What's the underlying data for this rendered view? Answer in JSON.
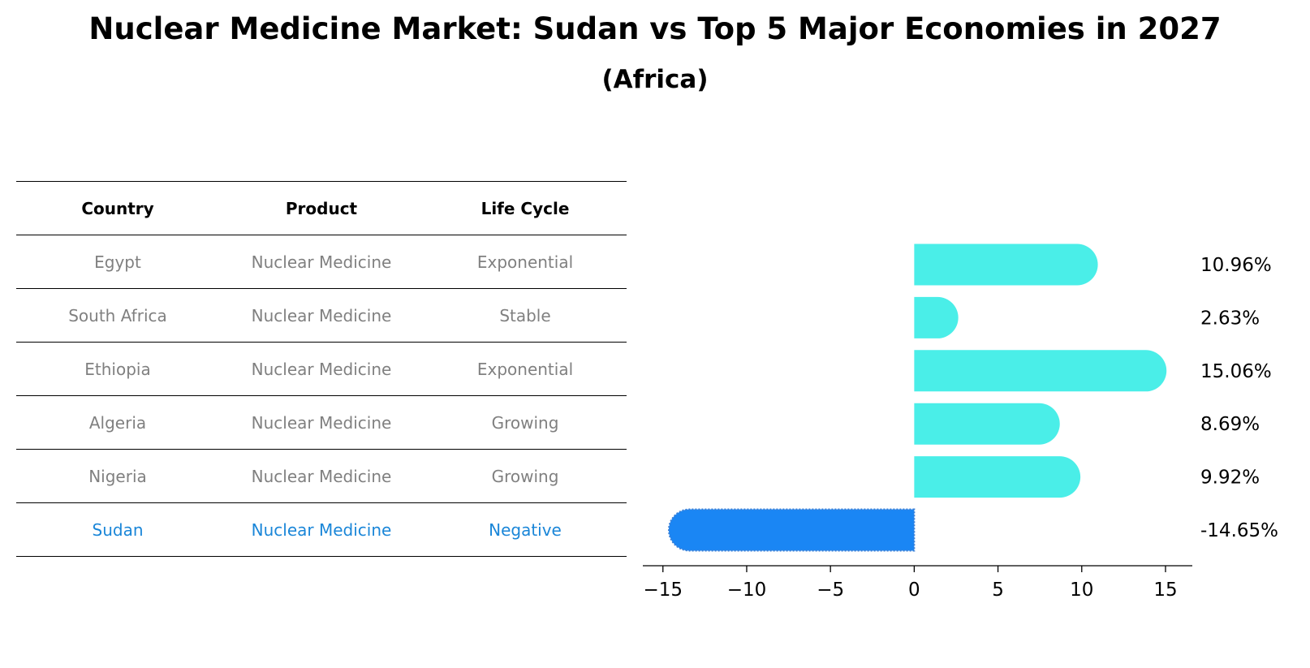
{
  "title": "Nuclear Medicine Market: Sudan vs Top 5 Major Economies in 2027",
  "subtitle": "(Africa)",
  "table": {
    "headers": [
      "Country",
      "Product",
      "Life Cycle"
    ],
    "rows": [
      {
        "country": "Egypt",
        "product": "Nuclear Medicine",
        "life_cycle": "Exponential"
      },
      {
        "country": "South Africa",
        "product": "Nuclear Medicine",
        "life_cycle": "Stable"
      },
      {
        "country": "Ethiopia",
        "product": "Nuclear Medicine",
        "life_cycle": "Exponential"
      },
      {
        "country": "Algeria",
        "product": "Nuclear Medicine",
        "life_cycle": "Growing"
      },
      {
        "country": "Nigeria",
        "product": "Nuclear Medicine",
        "life_cycle": "Growing"
      },
      {
        "country": "Sudan",
        "product": "Nuclear Medicine",
        "life_cycle": "Negative"
      }
    ]
  },
  "chart_data": {
    "type": "bar",
    "orientation": "horizontal",
    "categories": [
      "Egypt",
      "South Africa",
      "Ethiopia",
      "Algeria",
      "Nigeria",
      "Sudan"
    ],
    "values": [
      10.96,
      2.63,
      15.06,
      8.69,
      9.92,
      -14.65
    ],
    "labels": [
      "10.96%",
      "2.63%",
      "15.06%",
      "8.69%",
      "9.92%",
      "-14.65%"
    ],
    "xlim": [
      -16.2,
      16.6
    ],
    "xticks": [
      -15,
      -10,
      -5,
      0,
      5,
      10,
      15
    ],
    "xtick_labels": [
      "−15",
      "−10",
      "−5",
      "0",
      "5",
      "10",
      "15"
    ],
    "highlight": "Sudan",
    "colors": {
      "positive": "#4aeee8",
      "highlight": "#1a86f4"
    }
  }
}
